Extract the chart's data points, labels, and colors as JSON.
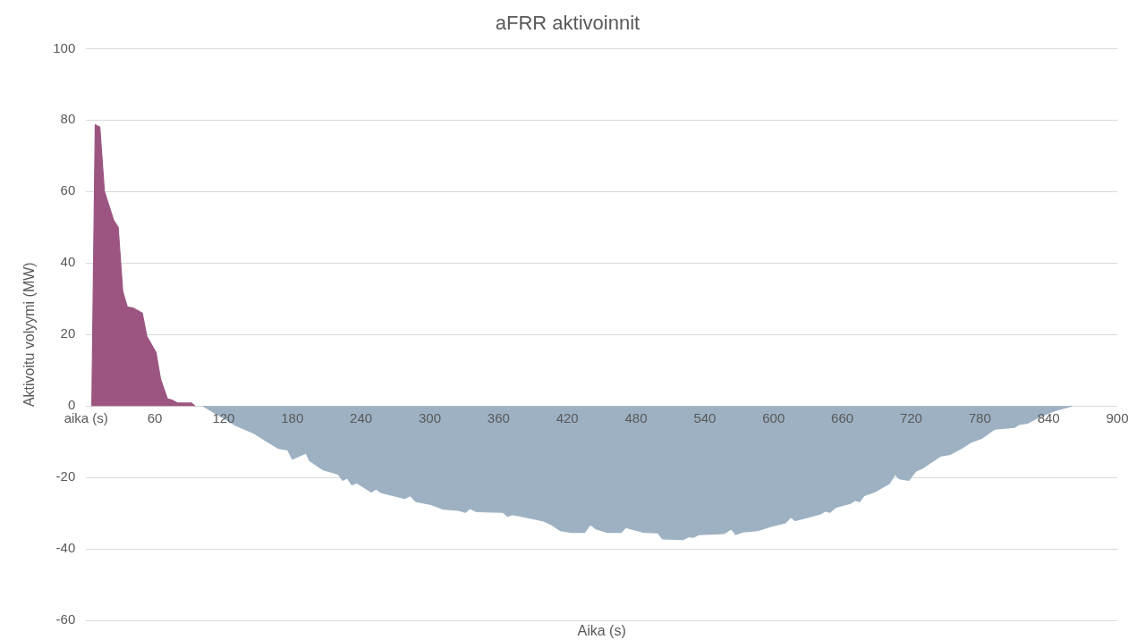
{
  "chart_data": {
    "type": "area",
    "title": "aFRR aktivoinnit",
    "xlabel": "Aika (s)",
    "ylabel": "Aktivoitu volyymi (MW)",
    "xlim": [
      0,
      900
    ],
    "xticks": [
      {
        "value": 0,
        "label": "aika (s)"
      },
      60,
      120,
      180,
      240,
      300,
      360,
      420,
      480,
      540,
      600,
      660,
      720,
      780,
      840,
      900
    ],
    "ylim": [
      -60,
      100
    ],
    "yticks": [
      -60,
      -40,
      -20,
      0,
      20,
      40,
      60,
      80,
      100
    ],
    "grid": "y",
    "legend": false,
    "series": [
      {
        "color": "#9b5580",
        "x": [
          5,
          8,
          12,
          16,
          24,
          28,
          32,
          36,
          41,
          49,
          53,
          61,
          65,
          71,
          76,
          80,
          92,
          95
        ],
        "values": [
          0,
          78.7,
          78,
          60,
          52,
          50,
          32,
          27.7,
          27.4,
          26,
          19.5,
          15,
          7.5,
          2,
          1.5,
          0.8,
          0.8,
          0
        ]
      },
      {
        "color": "#9db1c3",
        "x": [
          102,
          131,
          147,
          157,
          168,
          176,
          180,
          186,
          192,
          195,
          207,
          220,
          224,
          228,
          232,
          236,
          249,
          253,
          257,
          278,
          283,
          288,
          301,
          312,
          325,
          331,
          335,
          341,
          364,
          368,
          372,
          380,
          395,
          400,
          406,
          414,
          424,
          435,
          440,
          445,
          455,
          467,
          471,
          487,
          499,
          503,
          521,
          526,
          530,
          535,
          557,
          563,
          567,
          573,
          586,
          599,
          610,
          615,
          619,
          631,
          641,
          645,
          649,
          654,
          667,
          671,
          675,
          679,
          688,
          701,
          706,
          710,
          718,
          724,
          730,
          746,
          754,
          766,
          772,
          782,
          793,
          810,
          814,
          822,
          832,
          845,
          857,
          860
        ],
        "values": [
          0,
          -5.5,
          -7.7,
          -9.8,
          -11.9,
          -12.3,
          -14.9,
          -14,
          -13.2,
          -15.3,
          -17.9,
          -19.1,
          -20.8,
          -20.2,
          -22.1,
          -21.5,
          -24.1,
          -23.2,
          -24.2,
          -25.9,
          -25.1,
          -26.8,
          -27.6,
          -28.9,
          -29.2,
          -29.8,
          -28.7,
          -29.6,
          -29.8,
          -30.9,
          -30.4,
          -30.9,
          -31.9,
          -32.3,
          -33.2,
          -34.9,
          -35.4,
          -35.4,
          -33.2,
          -34.4,
          -35.4,
          -35.4,
          -34,
          -35.4,
          -35.5,
          -37.2,
          -37.4,
          -36.6,
          -36.8,
          -36,
          -35.7,
          -34.4,
          -36,
          -35.3,
          -34.9,
          -33.6,
          -32.8,
          -31.1,
          -32.1,
          -31.1,
          -30.2,
          -29.4,
          -29.8,
          -28.4,
          -27.3,
          -26.4,
          -26.8,
          -25.1,
          -24.1,
          -21.7,
          -19.2,
          -20.4,
          -20.8,
          -18.3,
          -17.4,
          -14,
          -13.6,
          -11.5,
          -10.2,
          -9,
          -6.5,
          -6,
          -5.2,
          -4.8,
          -3.1,
          -1.4,
          -0.3,
          0
        ]
      }
    ]
  }
}
